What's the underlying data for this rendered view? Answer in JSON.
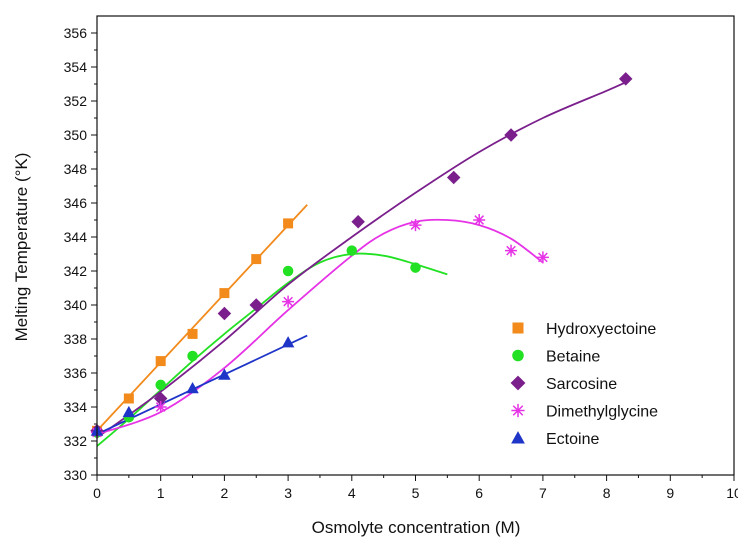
{
  "chart_data": {
    "type": "scatter",
    "xlabel": "Osmolyte concentration (M)",
    "ylabel": "Melting Temperature (°K)",
    "xlim": [
      0,
      10
    ],
    "ylim": [
      330,
      357
    ],
    "x_ticks": [
      0,
      1,
      2,
      3,
      4,
      5,
      6,
      7,
      8,
      9,
      10
    ],
    "y_ticks": [
      330,
      332,
      334,
      336,
      338,
      340,
      342,
      344,
      346,
      348,
      350,
      352,
      354,
      356
    ],
    "grid": false,
    "legend_position": "bottom-right",
    "series": [
      {
        "name": "Hydroxyectoine",
        "marker": "square",
        "color": "#F28A1C",
        "points": [
          [
            0,
            332.6
          ],
          [
            0.5,
            334.5
          ],
          [
            1,
            336.7
          ],
          [
            1.5,
            338.3
          ],
          [
            2,
            340.7
          ],
          [
            2.5,
            342.7
          ],
          [
            3,
            344.8
          ]
        ],
        "fit": [
          [
            0,
            332.6
          ],
          [
            3.3,
            345.9
          ]
        ]
      },
      {
        "name": "Betaine",
        "marker": "circle",
        "color": "#22E022",
        "points": [
          [
            0,
            332.5
          ],
          [
            0.5,
            333.4
          ],
          [
            1,
            335.3
          ],
          [
            1.5,
            337.0
          ],
          [
            3,
            342.0
          ],
          [
            4,
            343.2
          ],
          [
            5,
            342.2
          ]
        ],
        "fit": [
          [
            0,
            331.7
          ],
          [
            0.5,
            333.3
          ],
          [
            1,
            335.0
          ],
          [
            1.5,
            336.7
          ],
          [
            2,
            338.3
          ],
          [
            2.5,
            339.8
          ],
          [
            3,
            341.3
          ],
          [
            3.5,
            342.5
          ],
          [
            4,
            343.0
          ],
          [
            4.5,
            342.9
          ],
          [
            5,
            342.4
          ],
          [
            5.5,
            341.8
          ]
        ]
      },
      {
        "name": "Sarcosine",
        "marker": "diamond",
        "color": "#7A1F8C",
        "points": [
          [
            0,
            332.6
          ],
          [
            1,
            334.5
          ],
          [
            2,
            339.5
          ],
          [
            2.5,
            340.0
          ],
          [
            4.1,
            344.9
          ],
          [
            5.6,
            347.5
          ],
          [
            6.5,
            350.0
          ],
          [
            8.3,
            353.3
          ]
        ],
        "fit": [
          [
            0,
            332.2
          ],
          [
            1,
            334.9
          ],
          [
            2,
            337.9
          ],
          [
            3,
            341.2
          ],
          [
            4,
            344.0
          ],
          [
            5,
            346.6
          ],
          [
            6,
            349.0
          ],
          [
            7,
            351.0
          ],
          [
            8,
            352.6
          ],
          [
            8.3,
            353.1
          ]
        ]
      },
      {
        "name": "Dimethylglycine",
        "marker": "asterisk",
        "color": "#E633E6",
        "points": [
          [
            0,
            332.5
          ],
          [
            1,
            334.0
          ],
          [
            3,
            340.2
          ],
          [
            5,
            344.7
          ],
          [
            6,
            345.0
          ],
          [
            6.5,
            343.2
          ],
          [
            7,
            342.8
          ]
        ],
        "fit": [
          [
            0,
            332.4
          ],
          [
            1,
            333.7
          ],
          [
            2,
            336.3
          ],
          [
            3,
            339.7
          ],
          [
            4,
            342.9
          ],
          [
            4.5,
            344.2
          ],
          [
            5,
            344.9
          ],
          [
            5.5,
            345.0
          ],
          [
            6,
            344.7
          ],
          [
            6.5,
            343.9
          ],
          [
            7,
            342.5
          ]
        ]
      },
      {
        "name": "Ectoine",
        "marker": "triangle",
        "color": "#1F35C8",
        "points": [
          [
            0,
            332.6
          ],
          [
            0.5,
            333.7
          ],
          [
            1.5,
            335.1
          ],
          [
            2,
            335.9
          ],
          [
            3,
            337.8
          ]
        ],
        "fit": [
          [
            0,
            332.4
          ],
          [
            3.3,
            338.2
          ]
        ]
      }
    ]
  }
}
